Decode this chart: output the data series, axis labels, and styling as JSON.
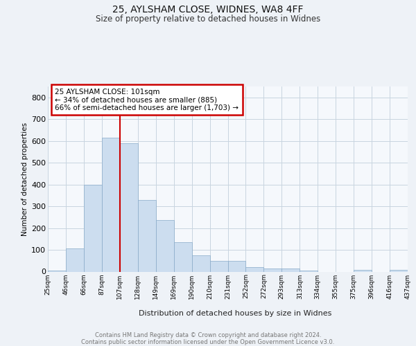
{
  "title1": "25, AYLSHAM CLOSE, WIDNES, WA8 4FF",
  "title2": "Size of property relative to detached houses in Widnes",
  "xlabel": "Distribution of detached houses by size in Widnes",
  "ylabel": "Number of detached properties",
  "bar_values": [
    5,
    105,
    400,
    615,
    590,
    330,
    238,
    135,
    75,
    50,
    50,
    22,
    15,
    15,
    5,
    0,
    0,
    8,
    0,
    7
  ],
  "bar_labels": [
    "25sqm",
    "46sqm",
    "66sqm",
    "87sqm",
    "107sqm",
    "128sqm",
    "149sqm",
    "169sqm",
    "190sqm",
    "210sqm",
    "231sqm",
    "252sqm",
    "272sqm",
    "293sqm",
    "313sqm",
    "334sqm",
    "355sqm",
    "375sqm",
    "396sqm",
    "416sqm",
    "437sqm"
  ],
  "bar_color": "#ccddef",
  "bar_edge_color": "#88aac8",
  "vline_x": 4,
  "vline_color": "#cc0000",
  "annotation_text": "25 AYLSHAM CLOSE: 101sqm\n← 34% of detached houses are smaller (885)\n66% of semi-detached houses are larger (1,703) →",
  "annotation_box_color": "#cc0000",
  "ylim": [
    0,
    850
  ],
  "yticks": [
    0,
    100,
    200,
    300,
    400,
    500,
    600,
    700,
    800
  ],
  "footer_text": "Contains HM Land Registry data © Crown copyright and database right 2024.\nContains public sector information licensed under the Open Government Licence v3.0.",
  "bg_color": "#eef2f7",
  "plot_bg_color": "#f5f8fc",
  "grid_color": "#c8d4e0"
}
